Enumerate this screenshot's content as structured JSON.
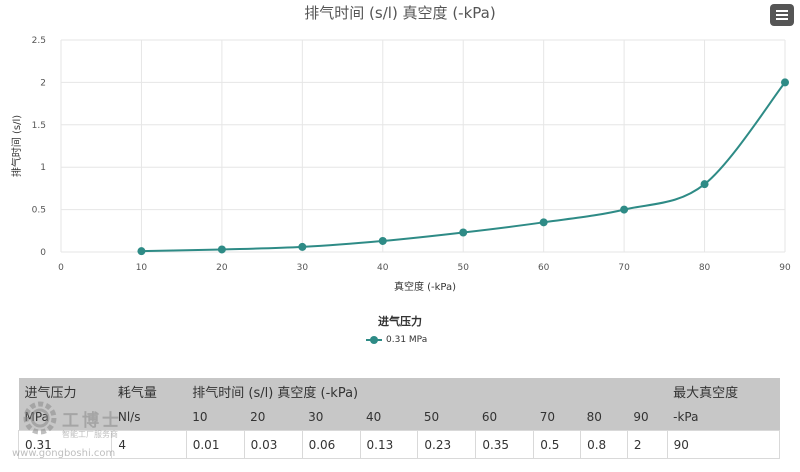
{
  "chart_data": {
    "type": "line",
    "title": "排气时间 (s/l) 真空度 (-kPa)",
    "xlabel": "真空度 (-kPa)",
    "ylabel": "排气时间 (s/l)",
    "xlim": [
      0,
      90
    ],
    "ylim": [
      0,
      2.5
    ],
    "x_ticks": [
      "0",
      "10",
      "20",
      "30",
      "40",
      "50",
      "60",
      "70",
      "80",
      "90"
    ],
    "y_ticks": [
      "0",
      "0.5",
      "1",
      "1.5",
      "2",
      "2.5"
    ],
    "x": [
      10,
      20,
      30,
      40,
      50,
      60,
      70,
      80,
      90
    ],
    "series": [
      {
        "name": "0.31 MPa",
        "values": [
          0.01,
          0.03,
          0.06,
          0.13,
          0.23,
          0.35,
          0.5,
          0.8,
          2
        ]
      }
    ],
    "legend_title": "进气压力",
    "legend_position": "bottom-center",
    "grid": true,
    "color": "#2e8b86"
  },
  "table": {
    "header": {
      "pressure": "进气压力",
      "consumption": "耗气量",
      "exhaust_time": "排气时间 (s/l) 真空度 (-kPa)",
      "max_vacuum": "最大真空度"
    },
    "units": {
      "pressure": "MPa",
      "consumption": "Nl/s",
      "vacuum_levels": [
        "10",
        "20",
        "30",
        "40",
        "50",
        "60",
        "70",
        "80",
        "90"
      ],
      "max_vacuum": "-kPa"
    },
    "values": {
      "pressure": "0.31",
      "consumption": "4",
      "times": [
        "0.01",
        "0.03",
        "0.06",
        "0.13",
        "0.23",
        "0.35",
        "0.5",
        "0.8",
        "2"
      ],
      "max_vacuum": "90"
    }
  },
  "watermark": {
    "logo": "工博士",
    "tagline": "智能工厂服务商",
    "url": "www.gongboshi.com"
  }
}
